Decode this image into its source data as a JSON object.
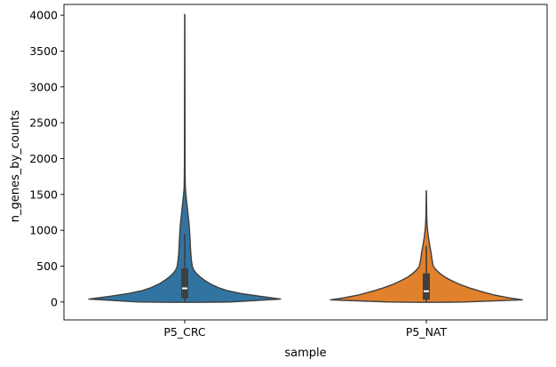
{
  "chart_data": {
    "type": "violin",
    "xlabel": "sample",
    "ylabel": "n_genes_by_counts",
    "ylim": [
      -250,
      4150
    ],
    "yticks": [
      0,
      500,
      1000,
      1500,
      2000,
      2500,
      3000,
      3500,
      4000
    ],
    "grid": false,
    "categories": [
      "P5_CRC",
      "P5_NAT"
    ],
    "series": [
      {
        "category": "P5_CRC",
        "color": "#3274a1",
        "min": 0,
        "q1": 50,
        "median": 190,
        "q3": 470,
        "whisker_high": 950,
        "max": 4010,
        "density": [
          [
            -5,
            0.15
          ],
          [
            0,
            0.48
          ],
          [
            40,
            1.0
          ],
          [
            80,
            0.78
          ],
          [
            120,
            0.58
          ],
          [
            160,
            0.44
          ],
          [
            200,
            0.35
          ],
          [
            250,
            0.27
          ],
          [
            300,
            0.21
          ],
          [
            350,
            0.16
          ],
          [
            400,
            0.12
          ],
          [
            450,
            0.092
          ],
          [
            500,
            0.078
          ],
          [
            600,
            0.068
          ],
          [
            700,
            0.062
          ],
          [
            800,
            0.058
          ],
          [
            900,
            0.054
          ],
          [
            1000,
            0.05
          ],
          [
            1100,
            0.044
          ],
          [
            1200,
            0.036
          ],
          [
            1300,
            0.028
          ],
          [
            1400,
            0.02
          ],
          [
            1500,
            0.012
          ],
          [
            1600,
            0.006
          ],
          [
            1800,
            0.004
          ],
          [
            2000,
            0.003
          ],
          [
            2500,
            0.0025
          ],
          [
            3000,
            0.002
          ],
          [
            3500,
            0.0015
          ],
          [
            4010,
            0.001
          ]
        ]
      },
      {
        "category": "P5_NAT",
        "color": "#e1812c",
        "min": 0,
        "q1": 30,
        "median": 150,
        "q3": 400,
        "whisker_high": 780,
        "max": 1550,
        "density": [
          [
            -5,
            0.1
          ],
          [
            0,
            0.4
          ],
          [
            30,
            1.0
          ],
          [
            60,
            0.85
          ],
          [
            100,
            0.7
          ],
          [
            150,
            0.56
          ],
          [
            200,
            0.44
          ],
          [
            250,
            0.34
          ],
          [
            300,
            0.26
          ],
          [
            350,
            0.19
          ],
          [
            400,
            0.14
          ],
          [
            450,
            0.1
          ],
          [
            500,
            0.072
          ],
          [
            600,
            0.058
          ],
          [
            700,
            0.048
          ],
          [
            800,
            0.034
          ],
          [
            900,
            0.022
          ],
          [
            1000,
            0.013
          ],
          [
            1100,
            0.007
          ],
          [
            1200,
            0.004
          ],
          [
            1350,
            0.0025
          ],
          [
            1550,
            0.001
          ]
        ]
      }
    ]
  }
}
